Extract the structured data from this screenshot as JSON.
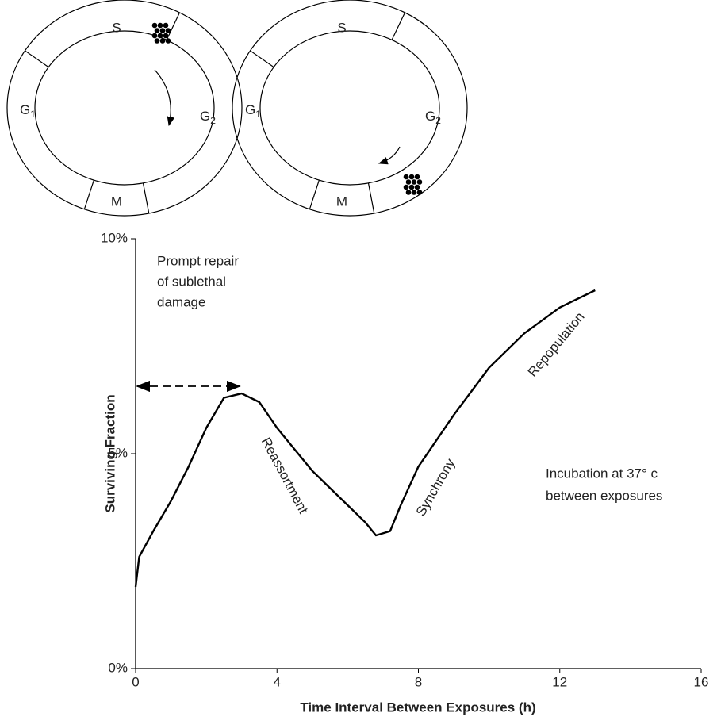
{
  "cell_cycle_diagrams": [
    {
      "phases": {
        "s": "S",
        "g1": {
          "letter": "G",
          "sub": "1"
        },
        "g2": {
          "letter": "G",
          "sub": "2"
        },
        "m": "M"
      }
    },
    {
      "phases": {
        "s": "S",
        "g1": {
          "letter": "G",
          "sub": "1"
        },
        "g2": {
          "letter": "G",
          "sub": "2"
        },
        "m": "M"
      }
    }
  ],
  "chart_data": {
    "type": "line",
    "xlabel": "Time Interval Between Exposures (h)",
    "ylabel": "Surviving Fraction",
    "x": [
      0,
      0.1,
      0.5,
      1,
      1.5,
      2,
      2.5,
      3,
      3.5,
      4,
      4.5,
      5,
      5.5,
      6,
      6.5,
      6.8,
      7.2,
      7.5,
      8,
      9,
      10,
      11,
      12,
      13
    ],
    "values": [
      1.9,
      2.6,
      3.2,
      3.9,
      4.7,
      5.6,
      6.3,
      6.4,
      6.2,
      5.6,
      5.1,
      4.6,
      4.2,
      3.8,
      3.4,
      3.1,
      3.2,
      3.8,
      4.7,
      5.9,
      7.0,
      7.8,
      8.4,
      8.8
    ],
    "color": "#000000",
    "xlim": [
      0,
      16
    ],
    "xticks": [
      0,
      4,
      8,
      12,
      16
    ],
    "ylim": [
      0,
      10
    ],
    "yticks": [
      {
        "value": 0,
        "label": "0%"
      },
      {
        "value": 5,
        "label": "5%"
      },
      {
        "value": 10,
        "label": "10%"
      }
    ],
    "annotations": {
      "prompt_repair": [
        "Prompt repair",
        "of sublethal",
        "damage"
      ],
      "reassortment": "Reassortment",
      "synchrony": "Synchrony",
      "repopulation": "Repopulation",
      "incubation": [
        "Incubation at 37° c",
        "between exposures"
      ]
    }
  }
}
